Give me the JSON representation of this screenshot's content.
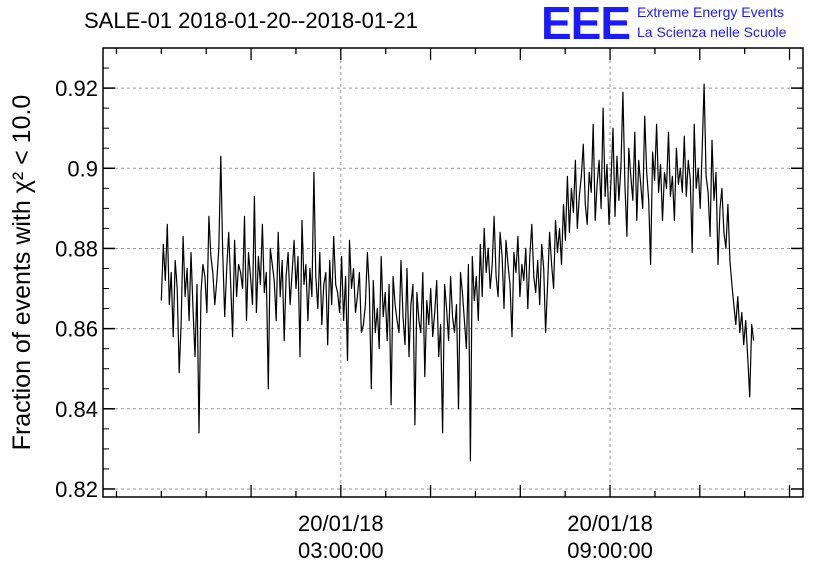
{
  "header": {
    "title": "SALE-01 2018-01-20--2018-01-21",
    "logo_text": "EEE",
    "logo_line1": "Extreme Energy Events",
    "logo_line2": "La Scienza nelle Scuole"
  },
  "colors": {
    "logo": "#1a1aff",
    "line": "#000000",
    "grid": "#999999"
  },
  "chart_data": {
    "type": "line",
    "title": "SALE-01 2018-01-20--2018-01-21",
    "ylabel": "Fraction of events with χ² < 10.0",
    "xlabel": "",
    "ylim": [
      0.818,
      0.93
    ],
    "xlim_hours": [
      -2.3,
      13.3
    ],
    "grid": true,
    "yticks": [
      "0.82",
      "0.84",
      "0.86",
      "0.88",
      "0.9",
      "0.92"
    ],
    "ytick_values": [
      0.82,
      0.84,
      0.86,
      0.88,
      0.9,
      0.92
    ],
    "xticks": [
      {
        "hour": 3,
        "line1": "20/01/18",
        "line2": "03:00:00"
      },
      {
        "hour": 9,
        "line1": "20/01/18",
        "line2": "09:00:00"
      }
    ],
    "series": [
      {
        "x_start_hour": -1.0,
        "x_end_hour": 12.2,
        "values": [
          0.867,
          0.881,
          0.872,
          0.886,
          0.866,
          0.874,
          0.858,
          0.877,
          0.87,
          0.849,
          0.861,
          0.883,
          0.868,
          0.875,
          0.862,
          0.879,
          0.865,
          0.853,
          0.871,
          0.834,
          0.869,
          0.876,
          0.873,
          0.864,
          0.888,
          0.878,
          0.874,
          0.866,
          0.872,
          0.88,
          0.903,
          0.879,
          0.863,
          0.875,
          0.884,
          0.871,
          0.858,
          0.882,
          0.868,
          0.876,
          0.874,
          0.87,
          0.888,
          0.862,
          0.879,
          0.873,
          0.866,
          0.893,
          0.864,
          0.878,
          0.871,
          0.886,
          0.869,
          0.874,
          0.845,
          0.88,
          0.876,
          0.872,
          0.862,
          0.884,
          0.868,
          0.877,
          0.857,
          0.873,
          0.879,
          0.866,
          0.874,
          0.882,
          0.87,
          0.878,
          0.853,
          0.887,
          0.871,
          0.876,
          0.862,
          0.875,
          0.868,
          0.899,
          0.873,
          0.865,
          0.879,
          0.861,
          0.871,
          0.874,
          0.856,
          0.877,
          0.866,
          0.883,
          0.871,
          0.869,
          0.864,
          0.878,
          0.862,
          0.873,
          0.852,
          0.882,
          0.87,
          0.875,
          0.864,
          0.868,
          0.874,
          0.859,
          0.861,
          0.866,
          0.879,
          0.87,
          0.845,
          0.872,
          0.859,
          0.865,
          0.855,
          0.878,
          0.863,
          0.869,
          0.857,
          0.871,
          0.841,
          0.873,
          0.866,
          0.862,
          0.859,
          0.877,
          0.863,
          0.856,
          0.875,
          0.853,
          0.866,
          0.871,
          0.836,
          0.869,
          0.862,
          0.859,
          0.874,
          0.848,
          0.867,
          0.861,
          0.87,
          0.858,
          0.864,
          0.872,
          0.853,
          0.861,
          0.834,
          0.871,
          0.865,
          0.857,
          0.873,
          0.863,
          0.859,
          0.866,
          0.84,
          0.874,
          0.869,
          0.862,
          0.855,
          0.876,
          0.827,
          0.878,
          0.867,
          0.873,
          0.862,
          0.881,
          0.868,
          0.885,
          0.874,
          0.88,
          0.87,
          0.876,
          0.888,
          0.873,
          0.868,
          0.884,
          0.878,
          0.865,
          0.882,
          0.876,
          0.871,
          0.858,
          0.879,
          0.874,
          0.883,
          0.868,
          0.876,
          0.872,
          0.88,
          0.865,
          0.878,
          0.886,
          0.873,
          0.869,
          0.877,
          0.866,
          0.881,
          0.875,
          0.859,
          0.871,
          0.884,
          0.876,
          0.87,
          0.887,
          0.879,
          0.885,
          0.876,
          0.891,
          0.882,
          0.898,
          0.884,
          0.895,
          0.889,
          0.902,
          0.885,
          0.893,
          0.898,
          0.906,
          0.891,
          0.886,
          0.899,
          0.894,
          0.911,
          0.887,
          0.896,
          0.902,
          0.89,
          0.915,
          0.893,
          0.901,
          0.886,
          0.897,
          0.91,
          0.888,
          0.903,
          0.892,
          0.9,
          0.919,
          0.896,
          0.883,
          0.905,
          0.898,
          0.892,
          0.909,
          0.887,
          0.902,
          0.896,
          0.89,
          0.913,
          0.899,
          0.892,
          0.876,
          0.904,
          0.897,
          0.911,
          0.894,
          0.901,
          0.887,
          0.899,
          0.895,
          0.909,
          0.893,
          0.898,
          0.887,
          0.905,
          0.896,
          0.9,
          0.894,
          0.908,
          0.893,
          0.902,
          0.897,
          0.879,
          0.911,
          0.895,
          0.9,
          0.89,
          0.904,
          0.921,
          0.898,
          0.894,
          0.883,
          0.907,
          0.892,
          0.899,
          0.876,
          0.89,
          0.895,
          0.884,
          0.88,
          0.891,
          0.877,
          0.871,
          0.866,
          0.861,
          0.868,
          0.859,
          0.864,
          0.856,
          0.862,
          0.853,
          0.843,
          0.861,
          0.857
        ]
      }
    ]
  }
}
